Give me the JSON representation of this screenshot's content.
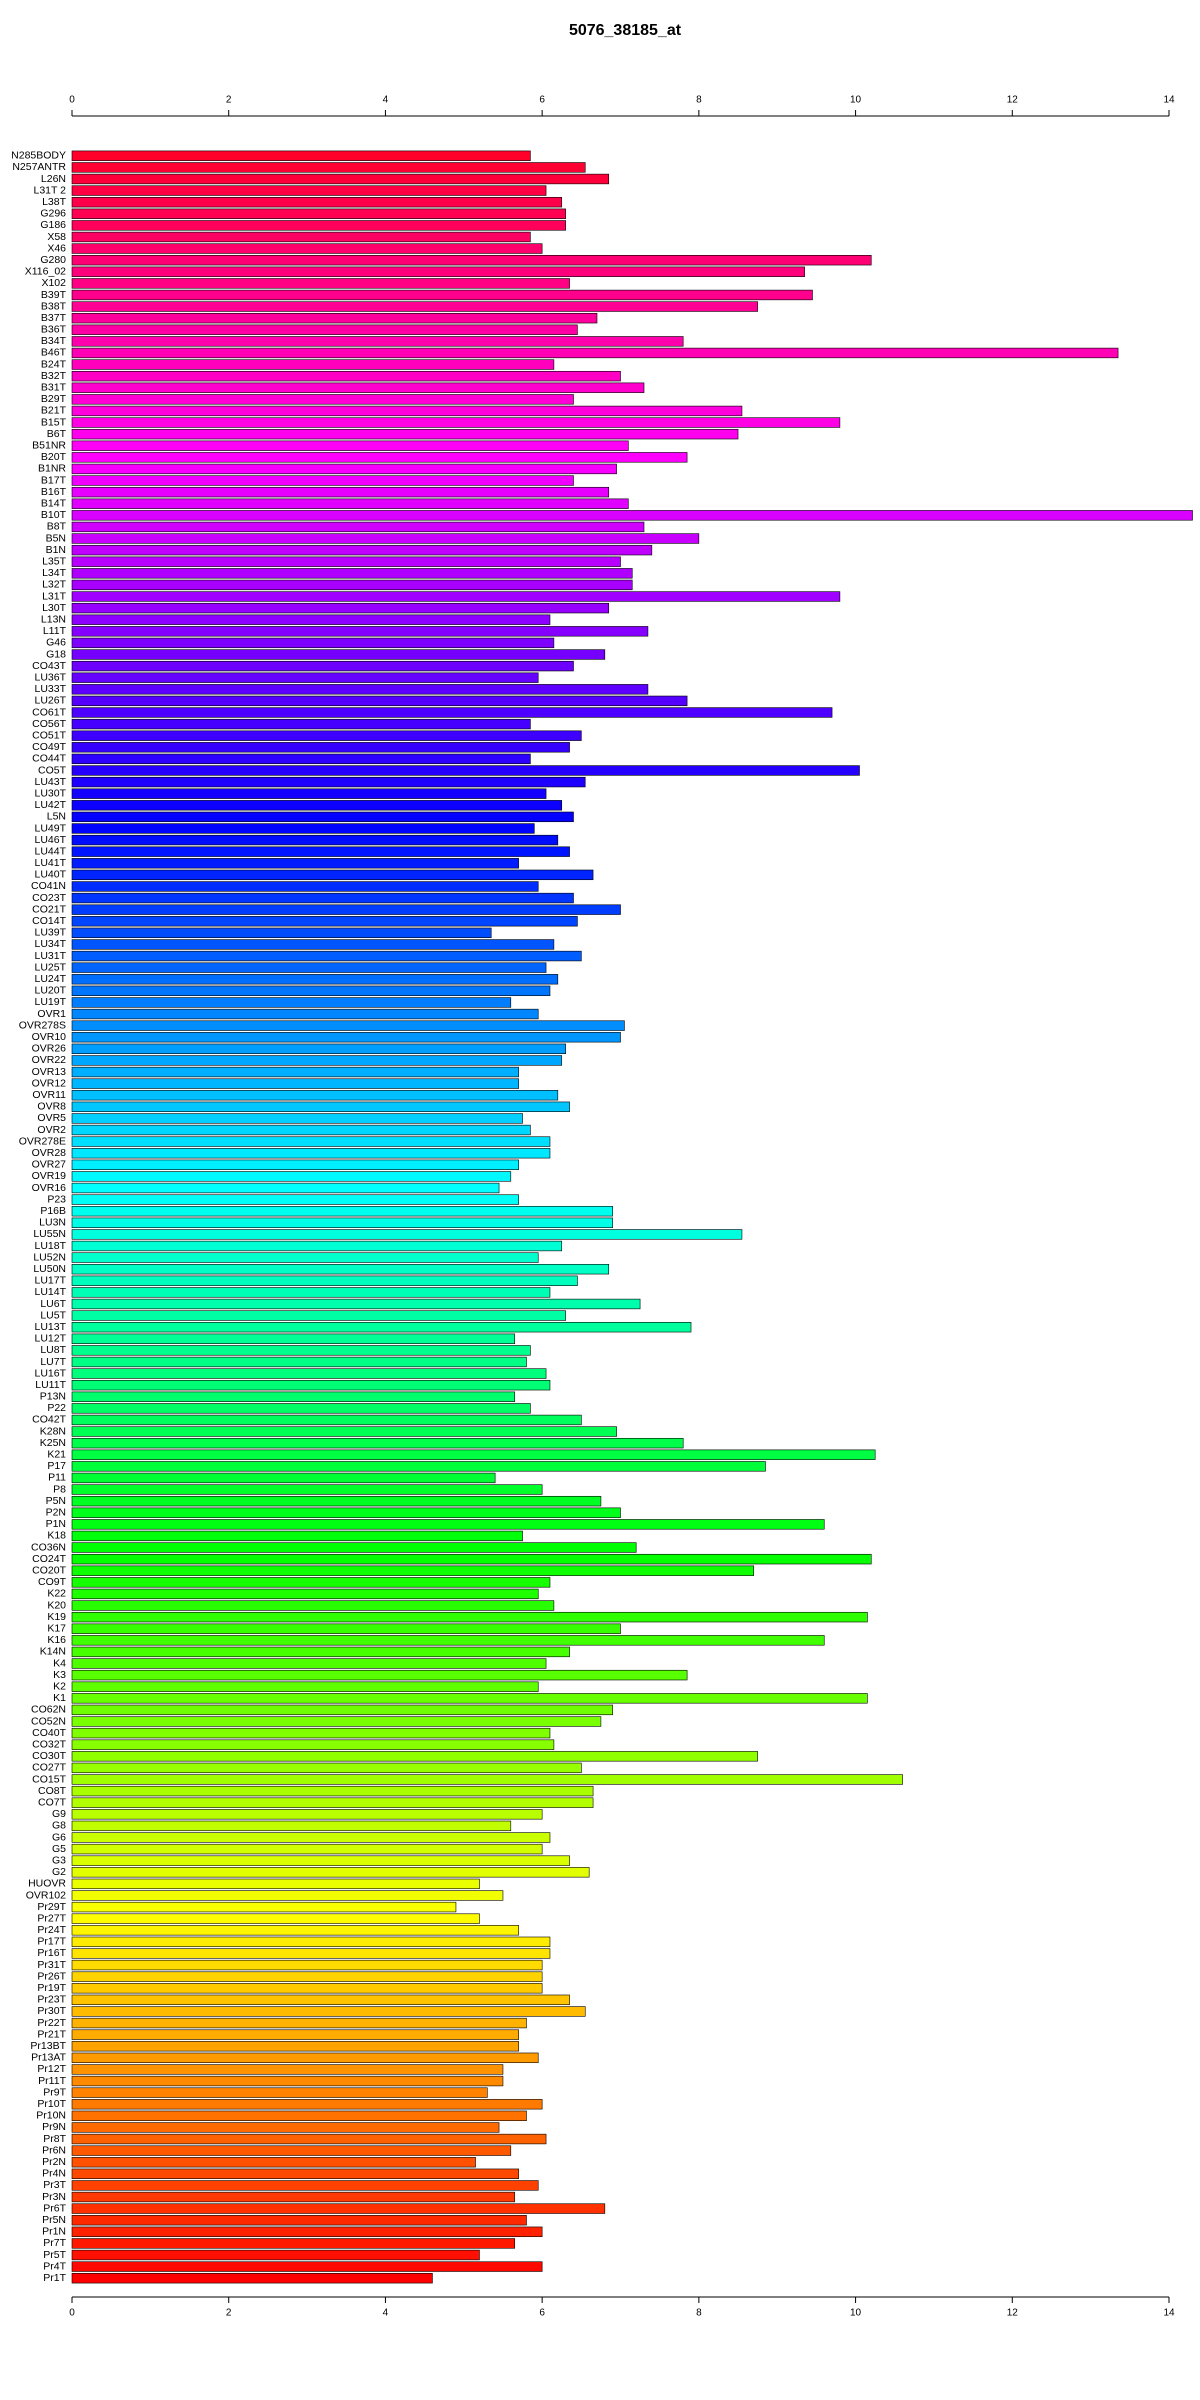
{
  "chart_data": {
    "type": "barh",
    "title": "5076_38185_at",
    "categories": [
      "N285BODY",
      "N257ANTR",
      "L26N",
      "L31T 2",
      "L38T",
      "G296",
      "G186",
      "X58",
      "X46",
      "G280",
      "X116_02",
      "X102",
      "B39T",
      "B38T",
      "B37T",
      "B36T",
      "B34T",
      "B46T",
      "B24T",
      "B32T",
      "B31T",
      "B29T",
      "B21T",
      "B15T",
      "B6T",
      "B51NR",
      "B20T",
      "B1NR",
      "B17T",
      "B16T",
      "B14T",
      "B10T",
      "B8T",
      "B5N",
      "B1N",
      "L35T",
      "L34T",
      "L32T",
      "L31T",
      "L30T",
      "L13N",
      "L11T",
      "G46",
      "G18",
      "CO43T",
      "LU36T",
      "LU33T",
      "LU26T",
      "CO61T",
      "CO56T",
      "CO51T",
      "CO49T",
      "CO44T",
      "CO5T",
      "LU43T",
      "LU30T",
      "LU42T",
      "L5N",
      "LU49T",
      "LU46T",
      "LU44T",
      "LU41T",
      "LU40T",
      "CO41N",
      "CO23T",
      "CO21T",
      "CO14T",
      "LU39T",
      "LU34T",
      "LU31T",
      "LU25T",
      "LU24T",
      "LU20T",
      "LU19T",
      "OVR1",
      "OVR278S",
      "OVR10",
      "OVR26",
      "OVR22",
      "OVR13",
      "OVR12",
      "OVR11",
      "OVR8",
      "OVR5",
      "OVR2",
      "OVR278E",
      "OVR28",
      "OVR27",
      "OVR19",
      "OVR16",
      "P23",
      "P16B",
      "LU3N",
      "LU55N",
      "LU18T",
      "LU52N",
      "LU50N",
      "LU17T",
      "LU14T",
      "LU6T",
      "LU5T",
      "LU13T",
      "LU12T",
      "LU8T",
      "LU7T",
      "LU16T",
      "LU11T",
      "P13N",
      "P22",
      "CO42T",
      "K28N",
      "K25N",
      "K21",
      "P17",
      "P11",
      "P8",
      "P5N",
      "P2N",
      "P1N",
      "K18",
      "CO36N",
      "CO24T",
      "CO20T",
      "CO9T",
      "K22",
      "K20",
      "K19",
      "K17",
      "K16",
      "K14N",
      "K4",
      "K3",
      "K2",
      "K1",
      "CO62N",
      "CO52N",
      "CO40T",
      "CO32T",
      "CO30T",
      "CO27T",
      "CO15T",
      "CO8T",
      "CO7T",
      "G9",
      "G8",
      "G6",
      "G5",
      "G3",
      "G2",
      "HUOVR",
      "OVR102",
      "Pr29T",
      "Pr27T",
      "Pr24T",
      "Pr17T",
      "Pr16T",
      "Pr31T",
      "Pr26T",
      "Pr19T",
      "Pr23T",
      "Pr30T",
      "Pr22T",
      "Pr21T",
      "Pr13BT",
      "Pr13AT",
      "Pr12T",
      "Pr11T",
      "Pr9T",
      "Pr10T",
      "Pr10N",
      "Pr9N",
      "Pr8T",
      "Pr6N",
      "Pr2N",
      "Pr4N",
      "Pr3T",
      "Pr3N",
      "Pr6T",
      "Pr5N",
      "Pr1N",
      "Pr7T",
      "Pr5T",
      "Pr4T",
      "Pr1T"
    ],
    "values": [
      5.85,
      6.55,
      6.85,
      6.05,
      6.25,
      6.3,
      6.3,
      5.85,
      6.0,
      10.2,
      9.35,
      6.35,
      9.45,
      8.75,
      6.7,
      6.45,
      7.8,
      13.35,
      6.15,
      7.0,
      7.3,
      6.4,
      8.55,
      9.8,
      8.5,
      7.1,
      7.85,
      6.95,
      6.4,
      6.85,
      7.1,
      14.3,
      7.3,
      8.0,
      7.4,
      7.0,
      7.15,
      7.15,
      9.8,
      6.85,
      6.1,
      7.35,
      6.15,
      6.8,
      6.4,
      5.95,
      7.35,
      7.85,
      9.7,
      5.85,
      6.5,
      6.35,
      5.85,
      10.05,
      6.55,
      6.05,
      6.25,
      6.4,
      5.9,
      6.2,
      6.35,
      5.7,
      6.65,
      5.95,
      6.4,
      7.0,
      6.45,
      5.35,
      6.15,
      6.5,
      6.05,
      6.2,
      6.1,
      5.6,
      5.95,
      7.05,
      7.0,
      6.3,
      6.25,
      5.7,
      5.7,
      6.2,
      6.35,
      5.75,
      5.85,
      6.1,
      6.1,
      5.7,
      5.6,
      5.45,
      5.7,
      6.9,
      6.9,
      8.55,
      6.25,
      5.95,
      6.85,
      6.45,
      6.1,
      7.25,
      6.3,
      7.9,
      5.65,
      5.85,
      5.8,
      6.05,
      6.1,
      5.65,
      5.85,
      6.5,
      6.95,
      7.8,
      10.25,
      8.85,
      5.4,
      6.0,
      6.75,
      7.0,
      9.6,
      5.75,
      7.2,
      10.2,
      8.7,
      6.1,
      5.95,
      6.15,
      10.15,
      7.0,
      9.6,
      6.35,
      6.05,
      7.85,
      5.95,
      10.15,
      6.9,
      6.75,
      6.1,
      6.15,
      8.75,
      6.5,
      10.6,
      6.65,
      6.65,
      6.0,
      5.6,
      6.1,
      6.0,
      6.35,
      6.6,
      5.2,
      5.5,
      4.9,
      5.2,
      5.7,
      6.1,
      6.1,
      6.0,
      6.0,
      6.0,
      6.35,
      6.55,
      5.8,
      5.7,
      5.7,
      5.95,
      5.5,
      5.5,
      5.3,
      6.0,
      5.8,
      5.45,
      6.05,
      5.6,
      5.15,
      5.7,
      5.95,
      5.65,
      6.8,
      5.8,
      6.0,
      5.65,
      5.2,
      6.0,
      4.6
    ],
    "color_hue_range": [
      350,
      0
    ],
    "xlim": [
      0,
      14
    ],
    "xticks": [
      0,
      2,
      4,
      6,
      8,
      10,
      12,
      14
    ],
    "grid": false
  }
}
